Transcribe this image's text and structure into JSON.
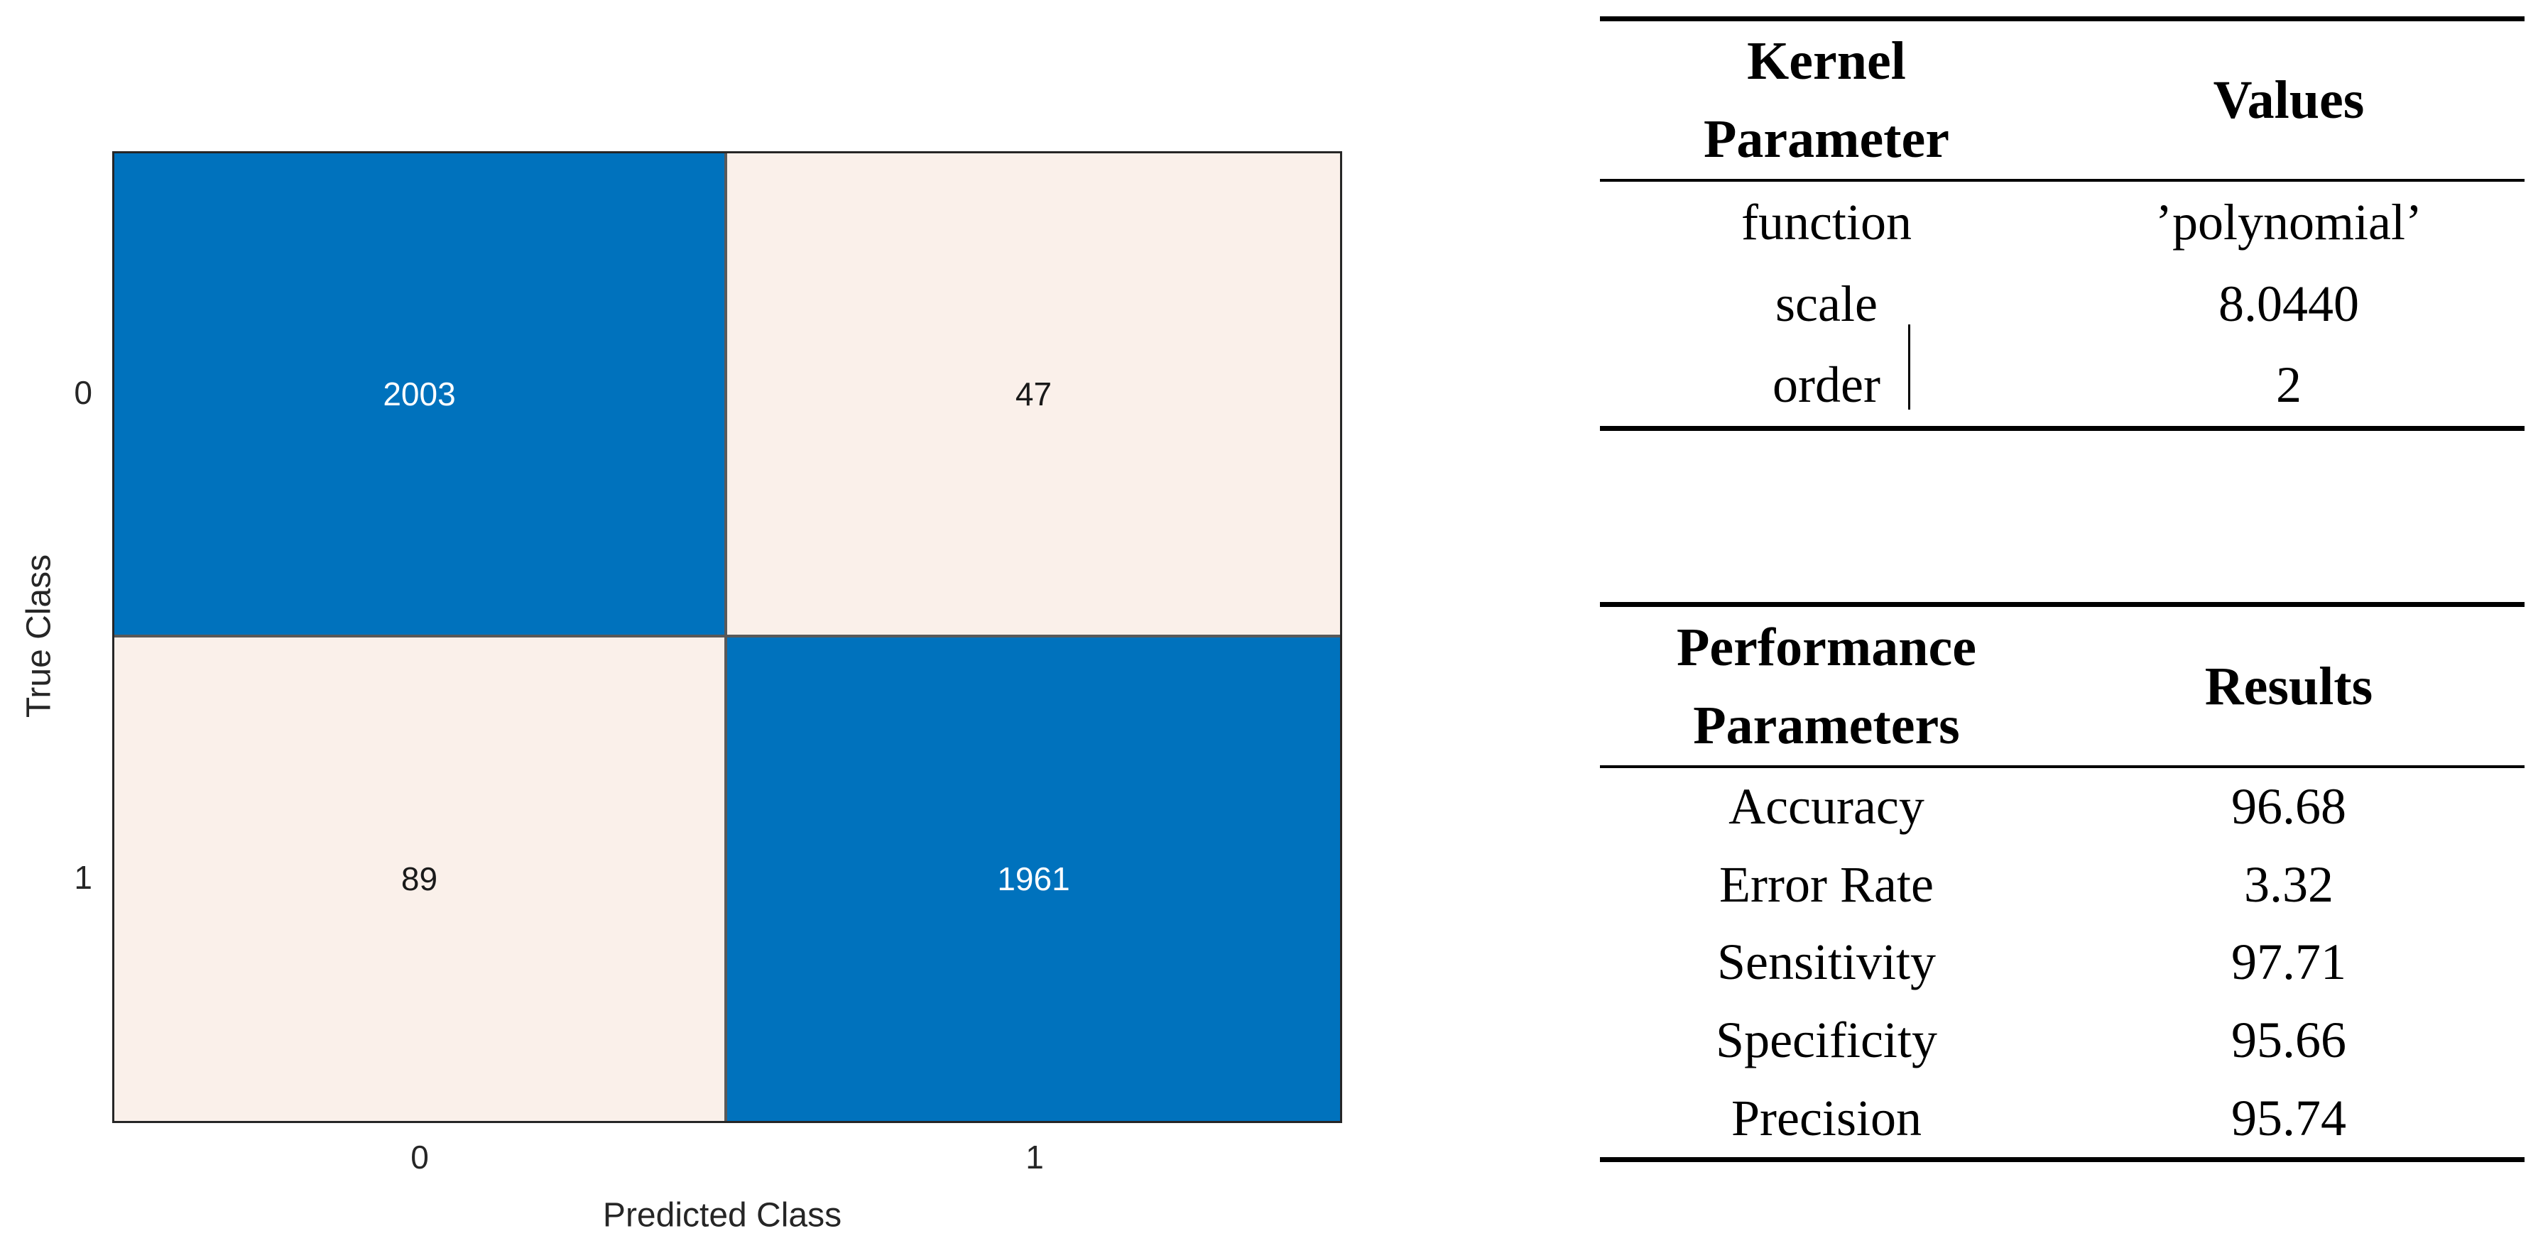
{
  "chart_data": [
    {
      "type": "heatmap",
      "title": "",
      "x": [
        "0",
        "1"
      ],
      "y": [
        "0",
        "1"
      ],
      "values": [
        [
          2003,
          47
        ],
        [
          89,
          1961
        ]
      ],
      "xlabel": "Predicted Class",
      "ylabel": "True Class",
      "legend_position": "none",
      "grid": false,
      "diagonal_color": "#0072BD",
      "off_diagonal_color": "#FAF0EA",
      "diagonal_text_color": "#ffffff",
      "off_diagonal_text_color": "#1a1a1a"
    },
    {
      "type": "table",
      "title": "Kernel Parameter table",
      "columns": [
        "Kernel Parameter",
        "Values"
      ],
      "columns_lines": [
        [
          "Kernel",
          "Parameter"
        ],
        [
          "Values"
        ]
      ],
      "rows": [
        [
          "function",
          "’polynomial’"
        ],
        [
          "scale",
          "8.0440"
        ],
        [
          "order",
          "2"
        ]
      ]
    },
    {
      "type": "table",
      "title": "Performance Parameters table",
      "columns": [
        "Performance Parameters",
        "Results"
      ],
      "columns_lines": [
        [
          "Performance",
          "Parameters"
        ],
        [
          "Results"
        ]
      ],
      "rows": [
        [
          "Accuracy",
          "96.68"
        ],
        [
          "Error Rate",
          "3.32"
        ],
        [
          "Sensitivity",
          "97.71"
        ],
        [
          "Specificity",
          "95.66"
        ],
        [
          "Precision",
          "95.74"
        ]
      ]
    }
  ]
}
